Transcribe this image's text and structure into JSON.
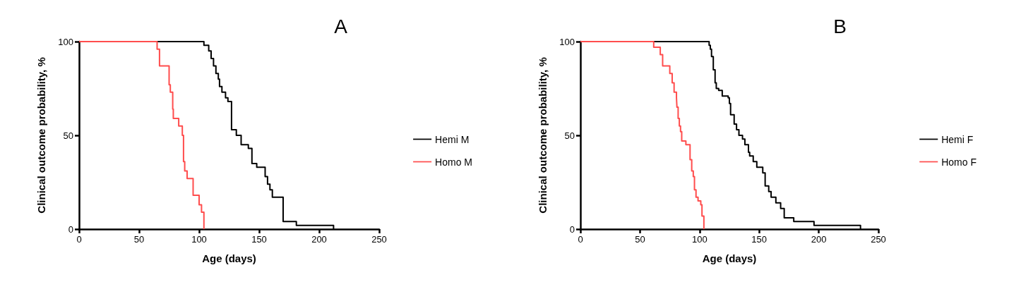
{
  "chart_data": [
    {
      "type": "step",
      "title": "A",
      "xlabel": "Age (days)",
      "ylabel": "Clinical outcome probability, %",
      "xlim": [
        0,
        250
      ],
      "xticks": [
        0,
        50,
        100,
        150,
        200,
        250
      ],
      "ylim": [
        0,
        100
      ],
      "yticks": [
        0,
        50,
        100
      ],
      "grid": false,
      "legend": "right",
      "marker": "none",
      "line_style": "solid",
      "series": [
        {
          "name": "Hemi M",
          "color": "#000000",
          "x": [
            0,
            104,
            108,
            110,
            112,
            114,
            116,
            117,
            119,
            122,
            124,
            127,
            131,
            135,
            141,
            144,
            148,
            155,
            157,
            159,
            161,
            170,
            181,
            212
          ],
          "values": [
            100,
            98,
            95,
            91,
            87,
            83,
            80,
            76,
            73,
            70,
            68,
            53,
            50,
            45,
            43,
            35,
            33,
            28,
            24,
            21,
            17,
            4,
            2,
            0
          ]
        },
        {
          "name": "Homo M",
          "color": "#ff4d4d",
          "x": [
            0,
            65,
            67,
            75,
            76,
            78,
            78.5,
            83,
            86,
            87,
            88,
            90,
            95,
            100,
            102,
            104
          ],
          "values": [
            100,
            96,
            87,
            77,
            73,
            64,
            59,
            55,
            50,
            36,
            31,
            27,
            18,
            13,
            9,
            0
          ]
        }
      ]
    },
    {
      "type": "step",
      "title": "B",
      "xlabel": "Age (days)",
      "ylabel": "Clinical outcome probability, %",
      "xlim": [
        0,
        250
      ],
      "xticks": [
        0,
        50,
        100,
        150,
        200,
        250
      ],
      "ylim": [
        0,
        100
      ],
      "yticks": [
        0,
        50,
        100
      ],
      "grid": false,
      "legend": "right",
      "marker": "none",
      "line_style": "solid",
      "series": [
        {
          "name": "Hemi F",
          "color": "#000000",
          "x": [
            0,
            108,
            109,
            110,
            111.5,
            113,
            114,
            116,
            119,
            124,
            125,
            126,
            129,
            131,
            133,
            136,
            138,
            141,
            142,
            145,
            148,
            153,
            155,
            158,
            160,
            164,
            168,
            171,
            179,
            196,
            235
          ],
          "values": [
            100,
            98,
            96,
            92,
            85,
            78,
            75,
            74,
            71,
            70,
            67,
            61,
            56,
            53,
            50,
            48,
            45,
            41,
            39,
            36,
            33,
            30,
            23,
            20,
            17,
            14,
            11,
            6,
            4,
            2,
            0
          ]
        },
        {
          "name": "Homo F",
          "color": "#ff4d4d",
          "x": [
            0,
            61.5,
            67,
            69,
            75,
            77,
            78.6,
            80.6,
            81,
            82,
            83,
            84,
            85,
            88.5,
            92,
            93.4,
            94.7,
            95.7,
            97,
            98.7,
            101,
            102,
            103.6
          ],
          "values": [
            100,
            97,
            93,
            87,
            83,
            78,
            73,
            70,
            65,
            59,
            55,
            52,
            47,
            45,
            37,
            31,
            28,
            21,
            17,
            15,
            13,
            7,
            0
          ]
        }
      ]
    }
  ]
}
